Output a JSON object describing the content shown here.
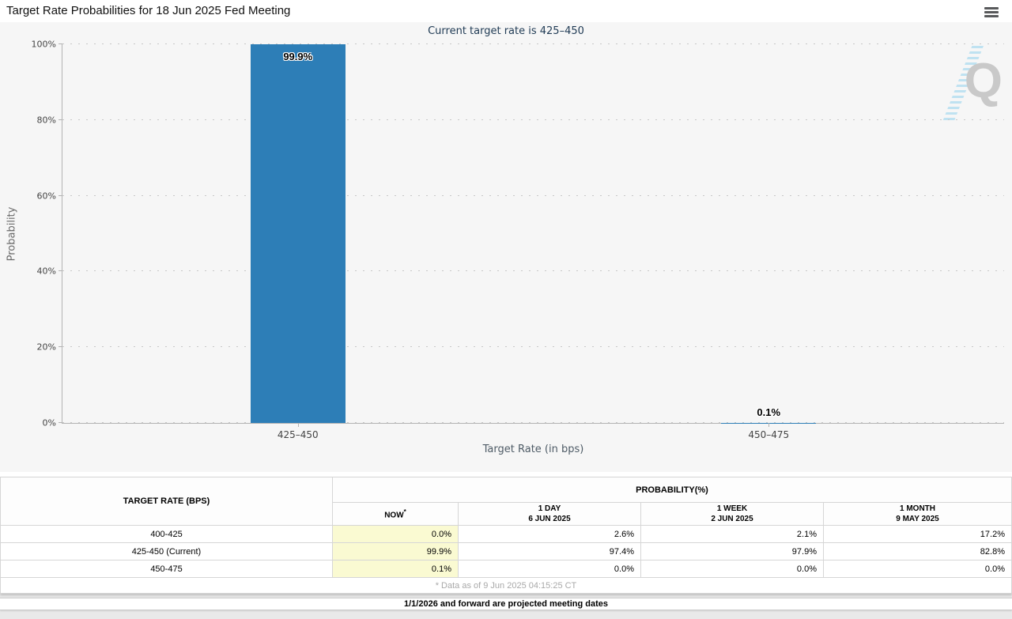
{
  "header": {
    "title": "Target Rate Probabilities for 18 Jun 2025 Fed Meeting"
  },
  "chart": {
    "subtitle": "Current target rate is 425–450",
    "watermark_letter": "Q",
    "colors": {
      "bar": "#2d7eb7",
      "subtitle_text": "#1f3a54",
      "now_column_highlight": "#fafad2"
    }
  },
  "chart_data": {
    "type": "bar",
    "title": "Target Rate Probabilities for 18 Jun 2025 Fed Meeting",
    "subtitle": "Current target rate is 425–450",
    "categories": [
      "425–450",
      "450–475"
    ],
    "values": [
      99.9,
      0.1
    ],
    "value_labels": [
      "99.9%",
      "0.1%"
    ],
    "xlabel": "Target Rate (in bps)",
    "ylabel": "Probability",
    "ylim": [
      0,
      100
    ],
    "y_ticks": [
      "0%",
      "20%",
      "40%",
      "60%",
      "80%",
      "100%"
    ],
    "grid": "dotted horizontal gridlines every 20%",
    "legend": "none",
    "bar_color": "#2d7eb7"
  },
  "table": {
    "col1_header": "TARGET RATE (BPS)",
    "group_header": "PROBABILITY(%)",
    "columns": [
      {
        "label": "NOW",
        "sup": "*",
        "sub": ""
      },
      {
        "label": "1 DAY",
        "sub": "6 JUN 2025"
      },
      {
        "label": "1 WEEK",
        "sub": "2 JUN 2025"
      },
      {
        "label": "1 MONTH",
        "sub": "9 MAY 2025"
      }
    ],
    "rows": [
      {
        "rate": "400-425",
        "now": "0.0%",
        "day": "2.6%",
        "week": "2.1%",
        "month": "17.2%"
      },
      {
        "rate": "425-450 (Current)",
        "now": "99.9%",
        "day": "97.4%",
        "week": "97.9%",
        "month": "82.8%"
      },
      {
        "rate": "450-475",
        "now": "0.1%",
        "day": "0.0%",
        "week": "0.0%",
        "month": "0.0%"
      }
    ],
    "footnote": "* Data as of 9 Jun 2025 04:15:25 CT"
  },
  "bottom_note": "1/1/2026 and forward are projected meeting dates"
}
